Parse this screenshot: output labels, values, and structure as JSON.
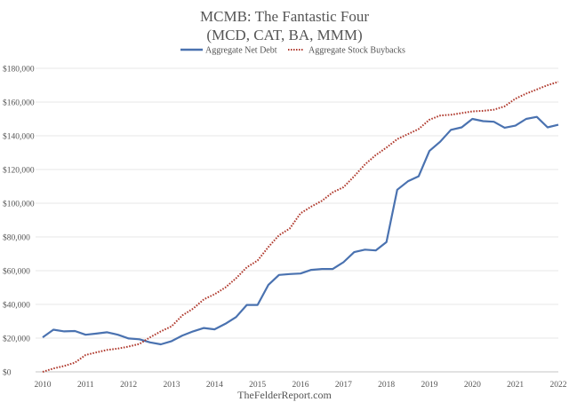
{
  "chart_data": {
    "type": "line",
    "title": "MCMB: The Fantastic Four",
    "subtitle": "(MCD, CAT, BA, MMM)",
    "source": "TheFelderReport.com",
    "xlabel": "",
    "ylabel": "",
    "xlim": [
      2010,
      2022
    ],
    "ylim": [
      0,
      180000
    ],
    "x_ticks": [
      "2010",
      "2011",
      "2012",
      "2013",
      "2014",
      "2015",
      "2016",
      "2017",
      "2018",
      "2019",
      "2020",
      "2021",
      "2022"
    ],
    "y_ticks": [
      "$0",
      "$20,000",
      "$40,000",
      "$60,000",
      "$80,000",
      "$100,000",
      "$120,000",
      "$140,000",
      "$160,000",
      "$180,000"
    ],
    "grid": true,
    "legend_position": "top",
    "x_start": 2010,
    "x_step": 0.25,
    "series": [
      {
        "name": "Aggregate Net Debt",
        "color": "#4a72b0",
        "style": "solid",
        "values": [
          20500,
          25000,
          24000,
          24200,
          22000,
          22700,
          23500,
          22000,
          19800,
          19300,
          17500,
          16300,
          18200,
          21500,
          24000,
          26000,
          25200,
          28500,
          32500,
          39700,
          39700,
          51500,
          57500,
          58000,
          58300,
          60500,
          61000,
          61000,
          65000,
          71000,
          72500,
          72000,
          77000,
          108000,
          113000,
          116000,
          131000,
          136500,
          143500,
          145000,
          150000,
          148700,
          148300,
          144800,
          146000,
          150000,
          151200,
          145000,
          146500
        ]
      },
      {
        "name": "Aggregate Stock Buybacks",
        "color": "#b03a2e",
        "style": "dotted",
        "values": [
          0,
          2000,
          3500,
          5500,
          10000,
          11500,
          13000,
          13800,
          15000,
          16500,
          20500,
          24000,
          27000,
          33500,
          37500,
          43000,
          46000,
          50000,
          55500,
          62000,
          66000,
          74000,
          81000,
          85000,
          94000,
          98000,
          101500,
          106500,
          109500,
          116000,
          123000,
          128500,
          133000,
          138000,
          141000,
          144000,
          149500,
          152000,
          152500,
          153500,
          154500,
          154800,
          155500,
          157500,
          162000,
          165000,
          167500,
          170000,
          172000
        ]
      }
    ]
  }
}
